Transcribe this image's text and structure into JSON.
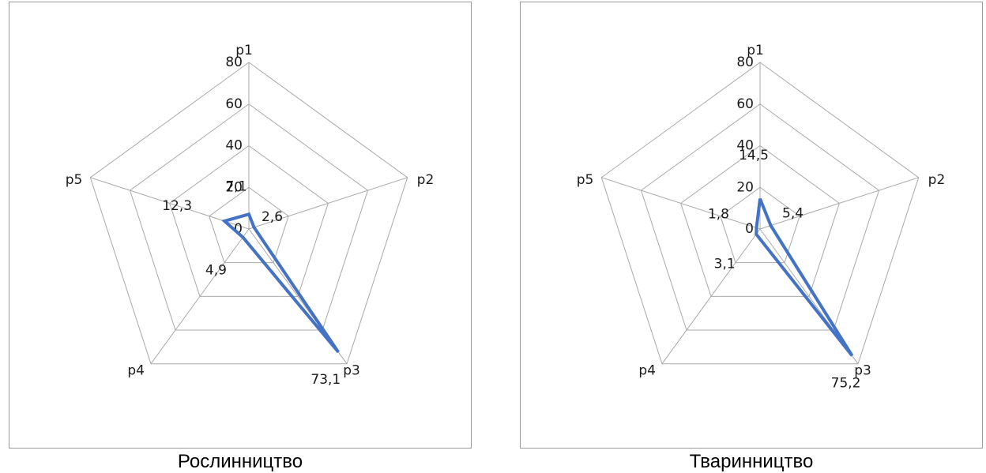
{
  "chart_data": [
    {
      "type": "radar",
      "caption": "Рослинництво",
      "categories": [
        "p1",
        "p2",
        "p3",
        "p4",
        "p5"
      ],
      "values": [
        7.1,
        2.6,
        73.1,
        4.9,
        12.3
      ],
      "data_labels": [
        "7,1",
        "2,6",
        "73,1",
        "4,9",
        "12,3"
      ],
      "axis_ticks": [
        "0",
        "20",
        "40",
        "60",
        "80"
      ],
      "rmax": 80,
      "series_color": "#4472c4"
    },
    {
      "type": "radar",
      "caption": "Тваринництво",
      "categories": [
        "p1",
        "p2",
        "p3",
        "p4",
        "p5"
      ],
      "values": [
        14.5,
        5.4,
        75.2,
        3.1,
        1.8
      ],
      "data_labels": [
        "14,5",
        "5,4",
        "75,2",
        "3,1",
        "1,8"
      ],
      "axis_ticks": [
        "0",
        "20",
        "40",
        "60",
        "80"
      ],
      "rmax": 80,
      "series_color": "#4472c4"
    }
  ]
}
